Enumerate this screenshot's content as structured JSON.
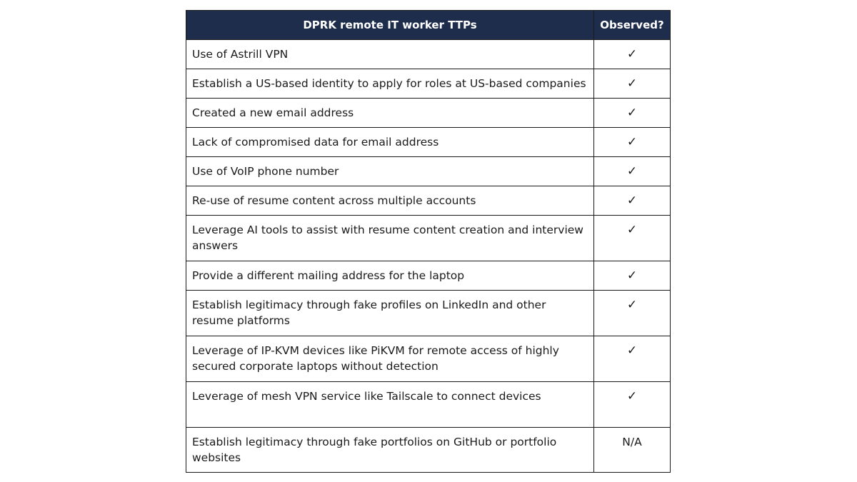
{
  "table": {
    "headers": {
      "ttp": "DPRK remote IT worker TTPs",
      "observed": "Observed?"
    },
    "rows": [
      {
        "ttp": "Use of Astrill VPN",
        "observed": "✓"
      },
      {
        "ttp": "Establish a US-based identity to apply for roles at US-based companies",
        "observed": "✓"
      },
      {
        "ttp": "Created a new email address",
        "observed": "✓"
      },
      {
        "ttp": "Lack of compromised data for email address",
        "observed": "✓"
      },
      {
        "ttp": "Use of VoIP phone number",
        "observed": "✓"
      },
      {
        "ttp": "Re-use of resume content across multiple accounts",
        "observed": "✓"
      },
      {
        "ttp": "Leverage AI tools to assist with resume content creation and interview answers",
        "observed": "✓"
      },
      {
        "ttp": "Provide a different mailing address for the laptop",
        "observed": "✓"
      },
      {
        "ttp": "Establish legitimacy through fake profiles on LinkedIn and other resume platforms",
        "observed": "✓"
      },
      {
        "ttp": "Leverage of IP-KVM devices like PiKVM for remote access of highly secured corporate laptops without detection",
        "observed": "✓"
      },
      {
        "ttp": "Leverage of mesh VPN service like Tailscale to connect devices",
        "observed": "✓"
      },
      {
        "ttp": "Establish legitimacy through fake portfolios on GitHub or portfolio websites",
        "observed": "N/A"
      }
    ]
  },
  "colors": {
    "header_bg": "#1e2d4c",
    "header_text": "#ffffff",
    "border": "#1a1a1a"
  }
}
